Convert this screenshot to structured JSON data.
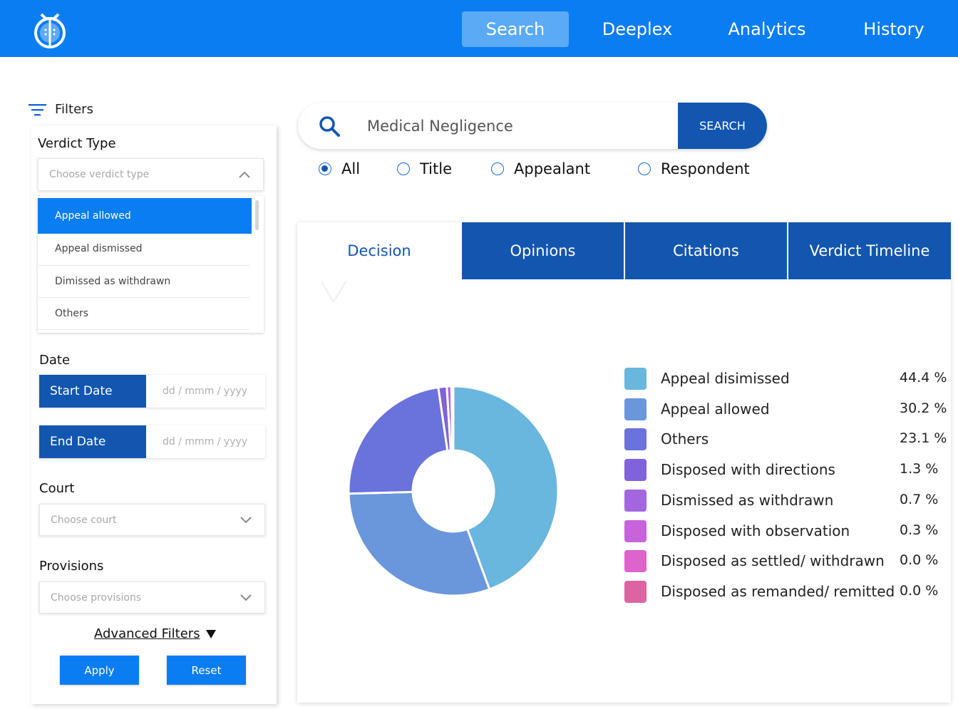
{
  "nav": {
    "items": [
      {
        "label": "Search",
        "active": true
      },
      {
        "label": "Deeplex",
        "active": false
      },
      {
        "label": "Analytics",
        "active": false
      },
      {
        "label": "History",
        "active": false
      }
    ]
  },
  "filters": {
    "title": "Filters",
    "verdict_type": {
      "label": "Verdict Type",
      "placeholder": "Choose verdict type",
      "options": [
        "Appeal allowed",
        "Appeal dismissed",
        "Dimissed as withdrawn",
        "Others"
      ],
      "selected": "Appeal allowed"
    },
    "date": {
      "label": "Date",
      "start_label": "Start Date",
      "end_label": "End Date",
      "placeholder": "dd / mmm / yyyy"
    },
    "court": {
      "label": "Court",
      "placeholder": "Choose court"
    },
    "provisions": {
      "label": "Provisions",
      "placeholder": "Choose provisions"
    },
    "advanced_label": "Advanced Filters",
    "apply_label": "Apply",
    "reset_label": "Reset"
  },
  "search": {
    "value": "Medical Negligence",
    "button_label": "SEARCH",
    "scope_options": [
      {
        "label": "All",
        "checked": true
      },
      {
        "label": "Title",
        "checked": false
      },
      {
        "label": "Appealant",
        "checked": false
      },
      {
        "label": "Respondent",
        "checked": false
      }
    ]
  },
  "tabs": [
    {
      "label": "Decision",
      "active": true
    },
    {
      "label": "Opinions",
      "active": false
    },
    {
      "label": "Citations",
      "active": false
    },
    {
      "label": "Verdict Timeline",
      "active": false
    }
  ],
  "colors": {
    "brand": "#0b7df2",
    "dark_blue": "#1256b0"
  },
  "chart_data": {
    "type": "pie",
    "donut": true,
    "legend_position": "right",
    "categories": [
      "Appeal disimissed",
      "Appeal allowed",
      "Others",
      "Disposed with directions",
      "Dismissed as withdrawn",
      "Disposed with observation",
      "Disposed as settled/ withdrawn",
      "Disposed as remanded/ remitted"
    ],
    "values": [
      44.4,
      30.2,
      23.1,
      1.3,
      0.7,
      0.3,
      0.0,
      0.0
    ],
    "value_labels": [
      "44.4 %",
      "30.2 %",
      "23.1 %",
      "1.3 %",
      "0.7 %",
      "0.3 %",
      "0.0 %",
      "0.0 %"
    ],
    "colors": [
      "#69b6de",
      "#6a96dc",
      "#6a72dc",
      "#7f62dc",
      "#a466de",
      "#c764dc",
      "#dc64cc",
      "#dc64a2"
    ]
  }
}
